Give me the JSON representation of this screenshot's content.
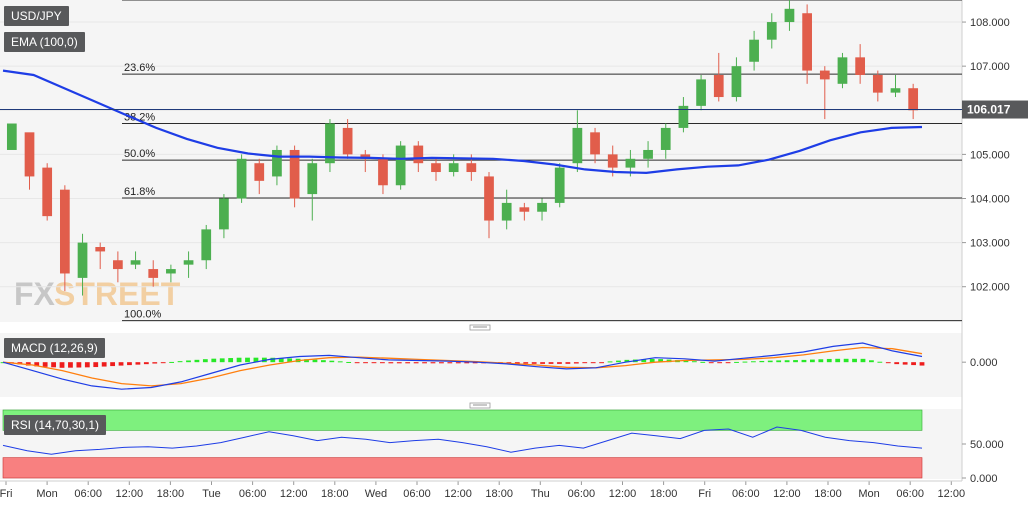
{
  "labels": {
    "symbol": "USD/JPY",
    "ema": "EMA (100,0)",
    "macd": "MACD (12,26,9)",
    "rsi": "RSI (14,70,30,1)",
    "watermark_fx": "FX",
    "watermark_street": "STREET"
  },
  "colors": {
    "bull": "#4caf50",
    "bear": "#e15d4b",
    "ema": "#1e3de6",
    "macd_line": "#1e3de6",
    "signal_line": "#ff7f0e",
    "hist_pos": "#27e827",
    "hist_neg": "#ee1c1c",
    "rsi_overbought_band": "#7ef07e",
    "rsi_oversold_band": "#f88080",
    "tag_bg": "#58595b"
  },
  "chart_data": [
    {
      "type": "candlestick",
      "name": "USD/JPY",
      "ylim": [
        101.2,
        108.5
      ],
      "y_ticks": [
        "108.000",
        "107.000",
        "106.000",
        "105.000",
        "104.000",
        "103.000",
        "102.000"
      ],
      "last_price": "106.017",
      "x_ticks": [
        "Fri",
        "Mon",
        "06:00",
        "12:00",
        "18:00",
        "Tue",
        "06:00",
        "12:00",
        "18:00",
        "Wed",
        "06:00",
        "12:00",
        "18:00",
        "Thu",
        "06:00",
        "12:00",
        "18:00",
        "Fri",
        "06:00",
        "12:00",
        "18:00",
        "Mon",
        "06:00",
        "12:00"
      ],
      "fibonacci": [
        {
          "label": "23.6%",
          "value": 106.82
        },
        {
          "label": "38.2%",
          "value": 105.7
        },
        {
          "label": "50.0%",
          "value": 104.87
        },
        {
          "label": "61.8%",
          "value": 104.01
        },
        {
          "label": "100.0%",
          "value": 101.23
        }
      ],
      "ema_100": [
        106.9,
        106.8,
        106.5,
        106.2,
        105.9,
        105.6,
        105.35,
        105.15,
        105.02,
        104.95,
        104.95,
        104.93,
        104.92,
        104.9,
        104.92,
        104.91,
        104.9,
        104.85,
        104.77,
        104.66,
        104.6,
        104.58,
        104.66,
        104.72,
        104.75,
        104.88,
        105.08,
        105.32,
        105.5,
        105.6,
        105.62
      ],
      "candles": [
        [
          105.1,
          105.7,
          105.3,
          105.4
        ],
        [
          105.5,
          104.5,
          104.6,
          104.2
        ],
        [
          104.7,
          103.6,
          104.8,
          103.5
        ],
        [
          104.2,
          102.3,
          104.3,
          101.9
        ],
        [
          102.2,
          103.0,
          103.2,
          101.8
        ],
        [
          102.9,
          102.8,
          103.0,
          102.4
        ],
        [
          102.6,
          102.4,
          102.8,
          102.1
        ],
        [
          102.5,
          102.6,
          102.8,
          102.4
        ],
        [
          102.4,
          102.2,
          102.6,
          102.0
        ],
        [
          102.3,
          102.4,
          102.5,
          102.1
        ],
        [
          102.5,
          102.6,
          102.8,
          102.2
        ],
        [
          102.6,
          103.3,
          103.4,
          102.4
        ],
        [
          103.3,
          104.0,
          104.1,
          103.1
        ],
        [
          104.0,
          104.9,
          105.0,
          103.9
        ],
        [
          104.8,
          104.4,
          104.9,
          104.1
        ],
        [
          104.5,
          105.1,
          105.2,
          104.3
        ],
        [
          105.1,
          104.0,
          105.2,
          103.8
        ],
        [
          104.1,
          104.8,
          104.9,
          103.5
        ],
        [
          104.8,
          105.7,
          105.8,
          104.6
        ],
        [
          105.6,
          105.0,
          105.8,
          104.9
        ],
        [
          105.0,
          104.9,
          105.1,
          104.6
        ],
        [
          104.9,
          104.3,
          105.0,
          104.1
        ],
        [
          104.3,
          105.2,
          105.3,
          104.2
        ],
        [
          105.2,
          104.8,
          105.3,
          104.6
        ],
        [
          104.8,
          104.6,
          104.9,
          104.4
        ],
        [
          104.6,
          104.8,
          105.0,
          104.5
        ],
        [
          104.8,
          104.6,
          105.0,
          104.4
        ],
        [
          104.5,
          103.5,
          104.6,
          103.1
        ],
        [
          103.5,
          103.9,
          104.2,
          103.3
        ],
        [
          103.8,
          103.7,
          103.9,
          103.5
        ],
        [
          103.7,
          103.9,
          104.0,
          103.5
        ],
        [
          103.9,
          104.7,
          104.8,
          103.8
        ],
        [
          104.8,
          105.6,
          106.0,
          104.6
        ],
        [
          105.5,
          105.0,
          105.6,
          104.8
        ],
        [
          105.0,
          104.7,
          105.2,
          104.5
        ],
        [
          104.7,
          104.9,
          105.1,
          104.5
        ],
        [
          104.9,
          105.1,
          105.3,
          104.7
        ],
        [
          105.1,
          105.6,
          105.7,
          104.9
        ],
        [
          105.6,
          106.1,
          106.3,
          105.5
        ],
        [
          106.1,
          106.7,
          106.8,
          106.0
        ],
        [
          106.8,
          106.3,
          107.3,
          106.2
        ],
        [
          106.3,
          107.0,
          107.2,
          106.2
        ],
        [
          107.1,
          107.6,
          107.8,
          106.9
        ],
        [
          107.6,
          108.0,
          108.2,
          107.4
        ],
        [
          108.0,
          108.3,
          108.5,
          107.8
        ],
        [
          108.2,
          106.9,
          108.4,
          106.6
        ],
        [
          106.9,
          106.7,
          107.0,
          105.8
        ],
        [
          106.6,
          107.2,
          107.3,
          106.5
        ],
        [
          107.2,
          106.8,
          107.5,
          106.6
        ],
        [
          106.8,
          106.4,
          106.9,
          106.2
        ],
        [
          106.4,
          106.5,
          106.8,
          106.3
        ],
        [
          106.5,
          106.0,
          106.6,
          105.8
        ]
      ]
    },
    {
      "type": "line",
      "name": "MACD (12,26,9)",
      "y_ticks": [
        "0.000"
      ],
      "ylim": [
        -0.6,
        0.5
      ],
      "macd": [
        0.0,
        -0.15,
        -0.3,
        -0.42,
        -0.48,
        -0.45,
        -0.35,
        -0.2,
        -0.05,
        0.05,
        0.1,
        0.12,
        0.08,
        0.04,
        0.03,
        0.02,
        0.0,
        -0.03,
        -0.08,
        -0.12,
        -0.1,
        0.0,
        0.08,
        0.06,
        0.02,
        0.07,
        0.12,
        0.18,
        0.28,
        0.34,
        0.2,
        0.1
      ],
      "signal": [
        0.0,
        -0.05,
        -0.15,
        -0.28,
        -0.38,
        -0.42,
        -0.38,
        -0.28,
        -0.15,
        -0.05,
        0.03,
        0.08,
        0.09,
        0.07,
        0.05,
        0.03,
        0.01,
        -0.02,
        -0.05,
        -0.09,
        -0.1,
        -0.06,
        0.0,
        0.03,
        0.04,
        0.05,
        0.08,
        0.13,
        0.2,
        0.26,
        0.24,
        0.15
      ],
      "histogram": [
        0.0,
        -0.07,
        -0.1,
        -0.09,
        -0.06,
        -0.03,
        0.02,
        0.06,
        0.08,
        0.08,
        0.06,
        0.03,
        -0.01,
        -0.02,
        -0.02,
        -0.02,
        -0.02,
        -0.02,
        -0.03,
        -0.03,
        -0.01,
        0.04,
        0.06,
        0.03,
        -0.01,
        0.01,
        0.03,
        0.04,
        0.06,
        0.06,
        -0.03,
        -0.06
      ]
    },
    {
      "type": "line",
      "name": "RSI (14,70,30,1)",
      "y_ticks": [
        "50.000",
        "0.000"
      ],
      "ylim": [
        0,
        100
      ],
      "overbought": 70,
      "oversold": 30,
      "rsi": [
        48,
        40,
        35,
        40,
        42,
        45,
        46,
        44,
        47,
        52,
        60,
        68,
        62,
        55,
        60,
        57,
        52,
        55,
        57,
        52,
        46,
        38,
        44,
        48,
        44,
        55,
        66,
        62,
        58,
        70,
        72,
        60,
        75,
        70,
        60,
        55,
        52,
        47,
        44
      ]
    }
  ]
}
